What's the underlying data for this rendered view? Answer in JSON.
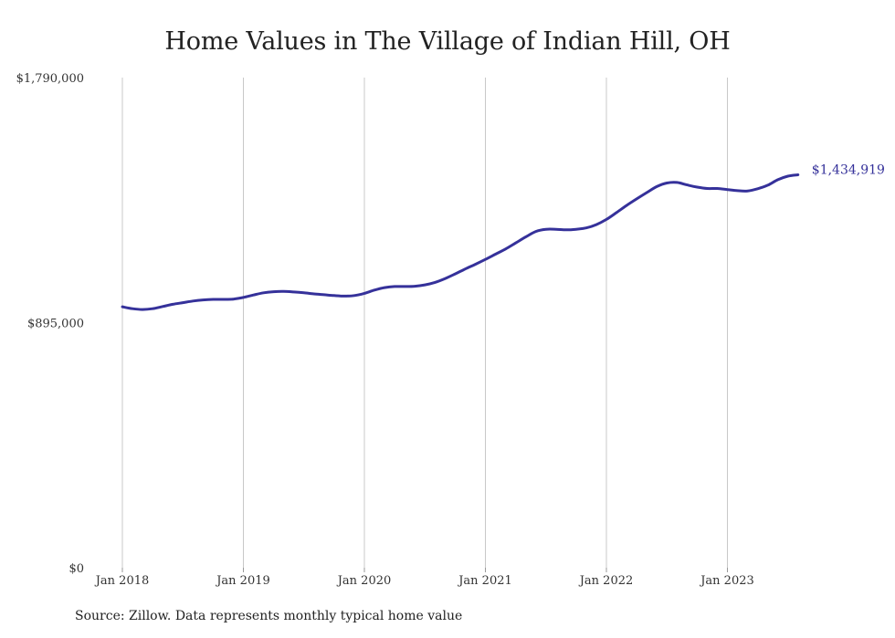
{
  "chart_data": {
    "type": "line",
    "title": "Home Values in The Village of Indian Hill, OH",
    "source": "Source: Zillow. Data represents monthly typical home value",
    "xlabel": "",
    "ylabel": "",
    "ylim": [
      0,
      1790000
    ],
    "y_ticks": [
      {
        "value": 0,
        "label": "$0"
      },
      {
        "value": 895000,
        "label": "$895,000"
      },
      {
        "value": 1790000,
        "label": "$1,790,000"
      }
    ],
    "x_ticks": [
      {
        "date": "2018-01",
        "label": "Jan 2018"
      },
      {
        "date": "2019-01",
        "label": "Jan 2019"
      },
      {
        "date": "2020-01",
        "label": "Jan 2020"
      },
      {
        "date": "2021-01",
        "label": "Jan 2021"
      },
      {
        "date": "2022-01",
        "label": "Jan 2022"
      },
      {
        "date": "2023-01",
        "label": "Jan 2023"
      }
    ],
    "grid": "vertical",
    "end_label": "$1,434,919",
    "colors": {
      "line": "#35319a",
      "grid": "#c8c8c8",
      "end_label": "#35319a"
    },
    "series": [
      {
        "x": [
          "2018-01",
          "2018-02",
          "2018-03",
          "2018-04",
          "2018-05",
          "2018-06",
          "2018-07",
          "2018-08",
          "2018-09",
          "2018-10",
          "2018-11",
          "2018-12",
          "2019-01",
          "2019-02",
          "2019-03",
          "2019-04",
          "2019-05",
          "2019-06",
          "2019-07",
          "2019-08",
          "2019-09",
          "2019-10",
          "2019-11",
          "2019-12",
          "2020-01",
          "2020-02",
          "2020-03",
          "2020-04",
          "2020-05",
          "2020-06",
          "2020-07",
          "2020-08",
          "2020-09",
          "2020-10",
          "2020-11",
          "2020-12",
          "2021-01",
          "2021-02",
          "2021-03",
          "2021-04",
          "2021-05",
          "2021-06",
          "2021-07",
          "2021-08",
          "2021-09",
          "2021-10",
          "2021-11",
          "2021-12",
          "2022-01",
          "2022-02",
          "2022-03",
          "2022-04",
          "2022-05",
          "2022-06",
          "2022-07",
          "2022-08",
          "2022-09",
          "2022-10",
          "2022-11",
          "2022-12",
          "2023-01",
          "2023-02",
          "2023-03",
          "2023-04",
          "2023-05",
          "2023-06",
          "2023-07",
          "2023-08"
        ],
        "values": [
          953000,
          946000,
          943000,
          946000,
          954000,
          962000,
          968000,
          974000,
          978000,
          980000,
          980000,
          981000,
          987000,
          996000,
          1004000,
          1008000,
          1009000,
          1007000,
          1004000,
          1000000,
          997000,
          994000,
          992000,
          994000,
          1002000,
          1014000,
          1023000,
          1027000,
          1027000,
          1028000,
          1033000,
          1042000,
          1056000,
          1073000,
          1091000,
          1108000,
          1126000,
          1145000,
          1164000,
          1186000,
          1208000,
          1228000,
          1236000,
          1236000,
          1234000,
          1236000,
          1241000,
          1253000,
          1272000,
          1297000,
          1323000,
          1347000,
          1370000,
          1392000,
          1405000,
          1407000,
          1398000,
          1390000,
          1385000,
          1385000,
          1381000,
          1377000,
          1376000,
          1384000,
          1397000,
          1417000,
          1430000,
          1434919
        ]
      }
    ]
  }
}
